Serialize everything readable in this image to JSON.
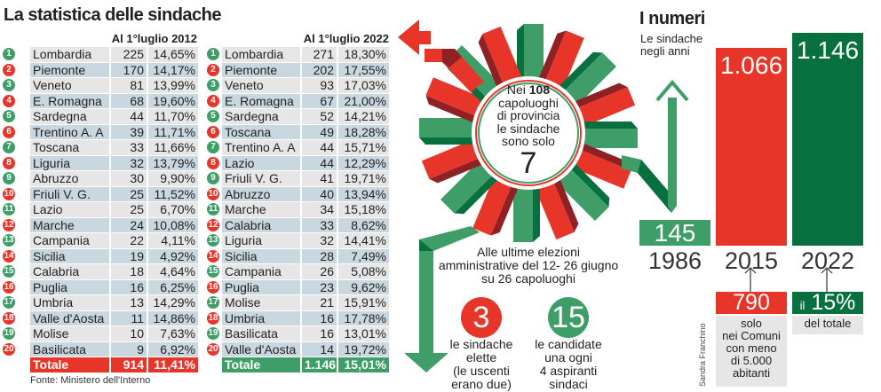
{
  "title": "La statistica delle sindache",
  "left_table": {
    "header": "Al 1°luglio 2012",
    "rows": [
      {
        "n": "1",
        "name": "Lombardia",
        "count": "225",
        "pct": "14,65%"
      },
      {
        "n": "2",
        "name": "Piemonte",
        "count": "170",
        "pct": "14,17%"
      },
      {
        "n": "3",
        "name": "Veneto",
        "count": "81",
        "pct": "13,99%"
      },
      {
        "n": "4",
        "name": "E. Romagna",
        "count": "68",
        "pct": "19,60%"
      },
      {
        "n": "5",
        "name": "Sardegna",
        "count": "44",
        "pct": "11,70%"
      },
      {
        "n": "6",
        "name": "Trentino A. A",
        "count": "39",
        "pct": "11,71%"
      },
      {
        "n": "7",
        "name": "Toscana",
        "count": "33",
        "pct": "11,66%"
      },
      {
        "n": "8",
        "name": "Liguria",
        "count": "32",
        "pct": "13,79%"
      },
      {
        "n": "9",
        "name": "Abruzzo",
        "count": "30",
        "pct": "9,90%"
      },
      {
        "n": "10",
        "name": "Friuli V. G.",
        "count": "25",
        "pct": "11,52%"
      },
      {
        "n": "11",
        "name": "Lazio",
        "count": "25",
        "pct": "6,70%"
      },
      {
        "n": "12",
        "name": "Marche",
        "count": "24",
        "pct": "10,08%"
      },
      {
        "n": "13",
        "name": "Campania",
        "count": "22",
        "pct": "4,11%"
      },
      {
        "n": "14",
        "name": "Sicilia",
        "count": "19",
        "pct": "4,92%"
      },
      {
        "n": "15",
        "name": "Calabria",
        "count": "18",
        "pct": "4,64%"
      },
      {
        "n": "16",
        "name": "Puglia",
        "count": "16",
        "pct": "6,25%"
      },
      {
        "n": "17",
        "name": "Umbria",
        "count": "13",
        "pct": "14,29%"
      },
      {
        "n": "18",
        "name": "Valle d'Aosta",
        "count": "11",
        "pct": "14,86%"
      },
      {
        "n": "19",
        "name": "Molise",
        "count": "10",
        "pct": "7,63%"
      },
      {
        "n": "20",
        "name": "Basilicata",
        "count": "9",
        "pct": "6,92%"
      }
    ],
    "total": {
      "name": "Totale",
      "count": "914",
      "pct": "11,41%"
    }
  },
  "right_table": {
    "header": "Al 1°luglio 2022",
    "rows": [
      {
        "n": "1",
        "name": "Lombardia",
        "count": "271",
        "pct": "18,30%"
      },
      {
        "n": "2",
        "name": "Piemonte",
        "count": "202",
        "pct": "17,55%"
      },
      {
        "n": "3",
        "name": "Veneto",
        "count": "93",
        "pct": "17,03%"
      },
      {
        "n": "4",
        "name": "E. Romagna",
        "count": "67",
        "pct": "21,00%"
      },
      {
        "n": "5",
        "name": "Sardegna",
        "count": "52",
        "pct": "14,21%"
      },
      {
        "n": "6",
        "name": "Toscana",
        "count": "49",
        "pct": "18,28%"
      },
      {
        "n": "7",
        "name": "Trentino A. A",
        "count": "44",
        "pct": "15,71%"
      },
      {
        "n": "8",
        "name": "Lazio",
        "count": "44",
        "pct": "12,29%"
      },
      {
        "n": "9",
        "name": "Friuli V. G.",
        "count": "41",
        "pct": "19,71%"
      },
      {
        "n": "10",
        "name": "Abruzzo",
        "count": "40",
        "pct": "13,94%"
      },
      {
        "n": "11",
        "name": "Marche",
        "count": "34",
        "pct": "15,18%"
      },
      {
        "n": "12",
        "name": "Calabria",
        "count": "33",
        "pct": "8,62%"
      },
      {
        "n": "13",
        "name": "Liguria",
        "count": "32",
        "pct": "14,41%"
      },
      {
        "n": "14",
        "name": "Sicilia",
        "count": "28",
        "pct": "7,49%"
      },
      {
        "n": "15",
        "name": "Campania",
        "count": "26",
        "pct": "5,08%"
      },
      {
        "n": "16",
        "name": "Puglia",
        "count": "23",
        "pct": "9,62%"
      },
      {
        "n": "17",
        "name": "Molise",
        "count": "21",
        "pct": "15,91%"
      },
      {
        "n": "18",
        "name": "Umbria",
        "count": "16",
        "pct": "17,78%"
      },
      {
        "n": "19",
        "name": "Basilicata",
        "count": "16",
        "pct": "13,01%"
      },
      {
        "n": "20",
        "name": "Valle d'Aosta",
        "count": "14",
        "pct": "19,72%"
      }
    ],
    "total": {
      "name": "Totale",
      "count": "1.146",
      "pct": "15,01%"
    }
  },
  "source": "Fonte: Ministero dell'Interno",
  "center": {
    "l1a": "Nei ",
    "l1b": "108",
    "l2": "capoluoghi",
    "l3": "di provincia",
    "l4": "le sindache",
    "l5": "sono solo",
    "big": "7"
  },
  "elections": {
    "text1": "Alle ultime elezioni",
    "text2": "amministrative del 12- 26 giugno",
    "text3": "su 26 capoluoghi",
    "elected": {
      "value": "3",
      "l1": "le sindache",
      "l2": "elette",
      "l3": "(le uscenti",
      "l4": "erano due)"
    },
    "candidates": {
      "value": "15",
      "l1": "le candidate",
      "l2": "una ogni",
      "l3": "4 aspiranti",
      "l4": "sindaci"
    }
  },
  "numbers": {
    "title": "I numeri",
    "subtitle1": "Le sindache",
    "subtitle2": "negli anni",
    "note2015": {
      "value": "790",
      "l1": "solo",
      "l2": "nei Comuni",
      "l3": "con meno",
      "l4": "di 5.000",
      "l5": "abitanti"
    },
    "note2022": {
      "prefix": "il",
      "value": "15%",
      "text": "del totale"
    },
    "author": "Sandra Franchino"
  },
  "chart_data": {
    "type": "bar",
    "title": "I numeri",
    "subtitle": "Le sindache negli anni",
    "categories": [
      "1986",
      "2015",
      "2022"
    ],
    "values": [
      145,
      1066,
      1146
    ],
    "labels": [
      "145",
      "1.066",
      "1.146"
    ],
    "colors": [
      "#3f9e68",
      "#e8352a",
      "#08703f"
    ]
  },
  "colors": {
    "red": "#e8352a",
    "green": "#3f9e68",
    "dark_green": "#08703f"
  }
}
